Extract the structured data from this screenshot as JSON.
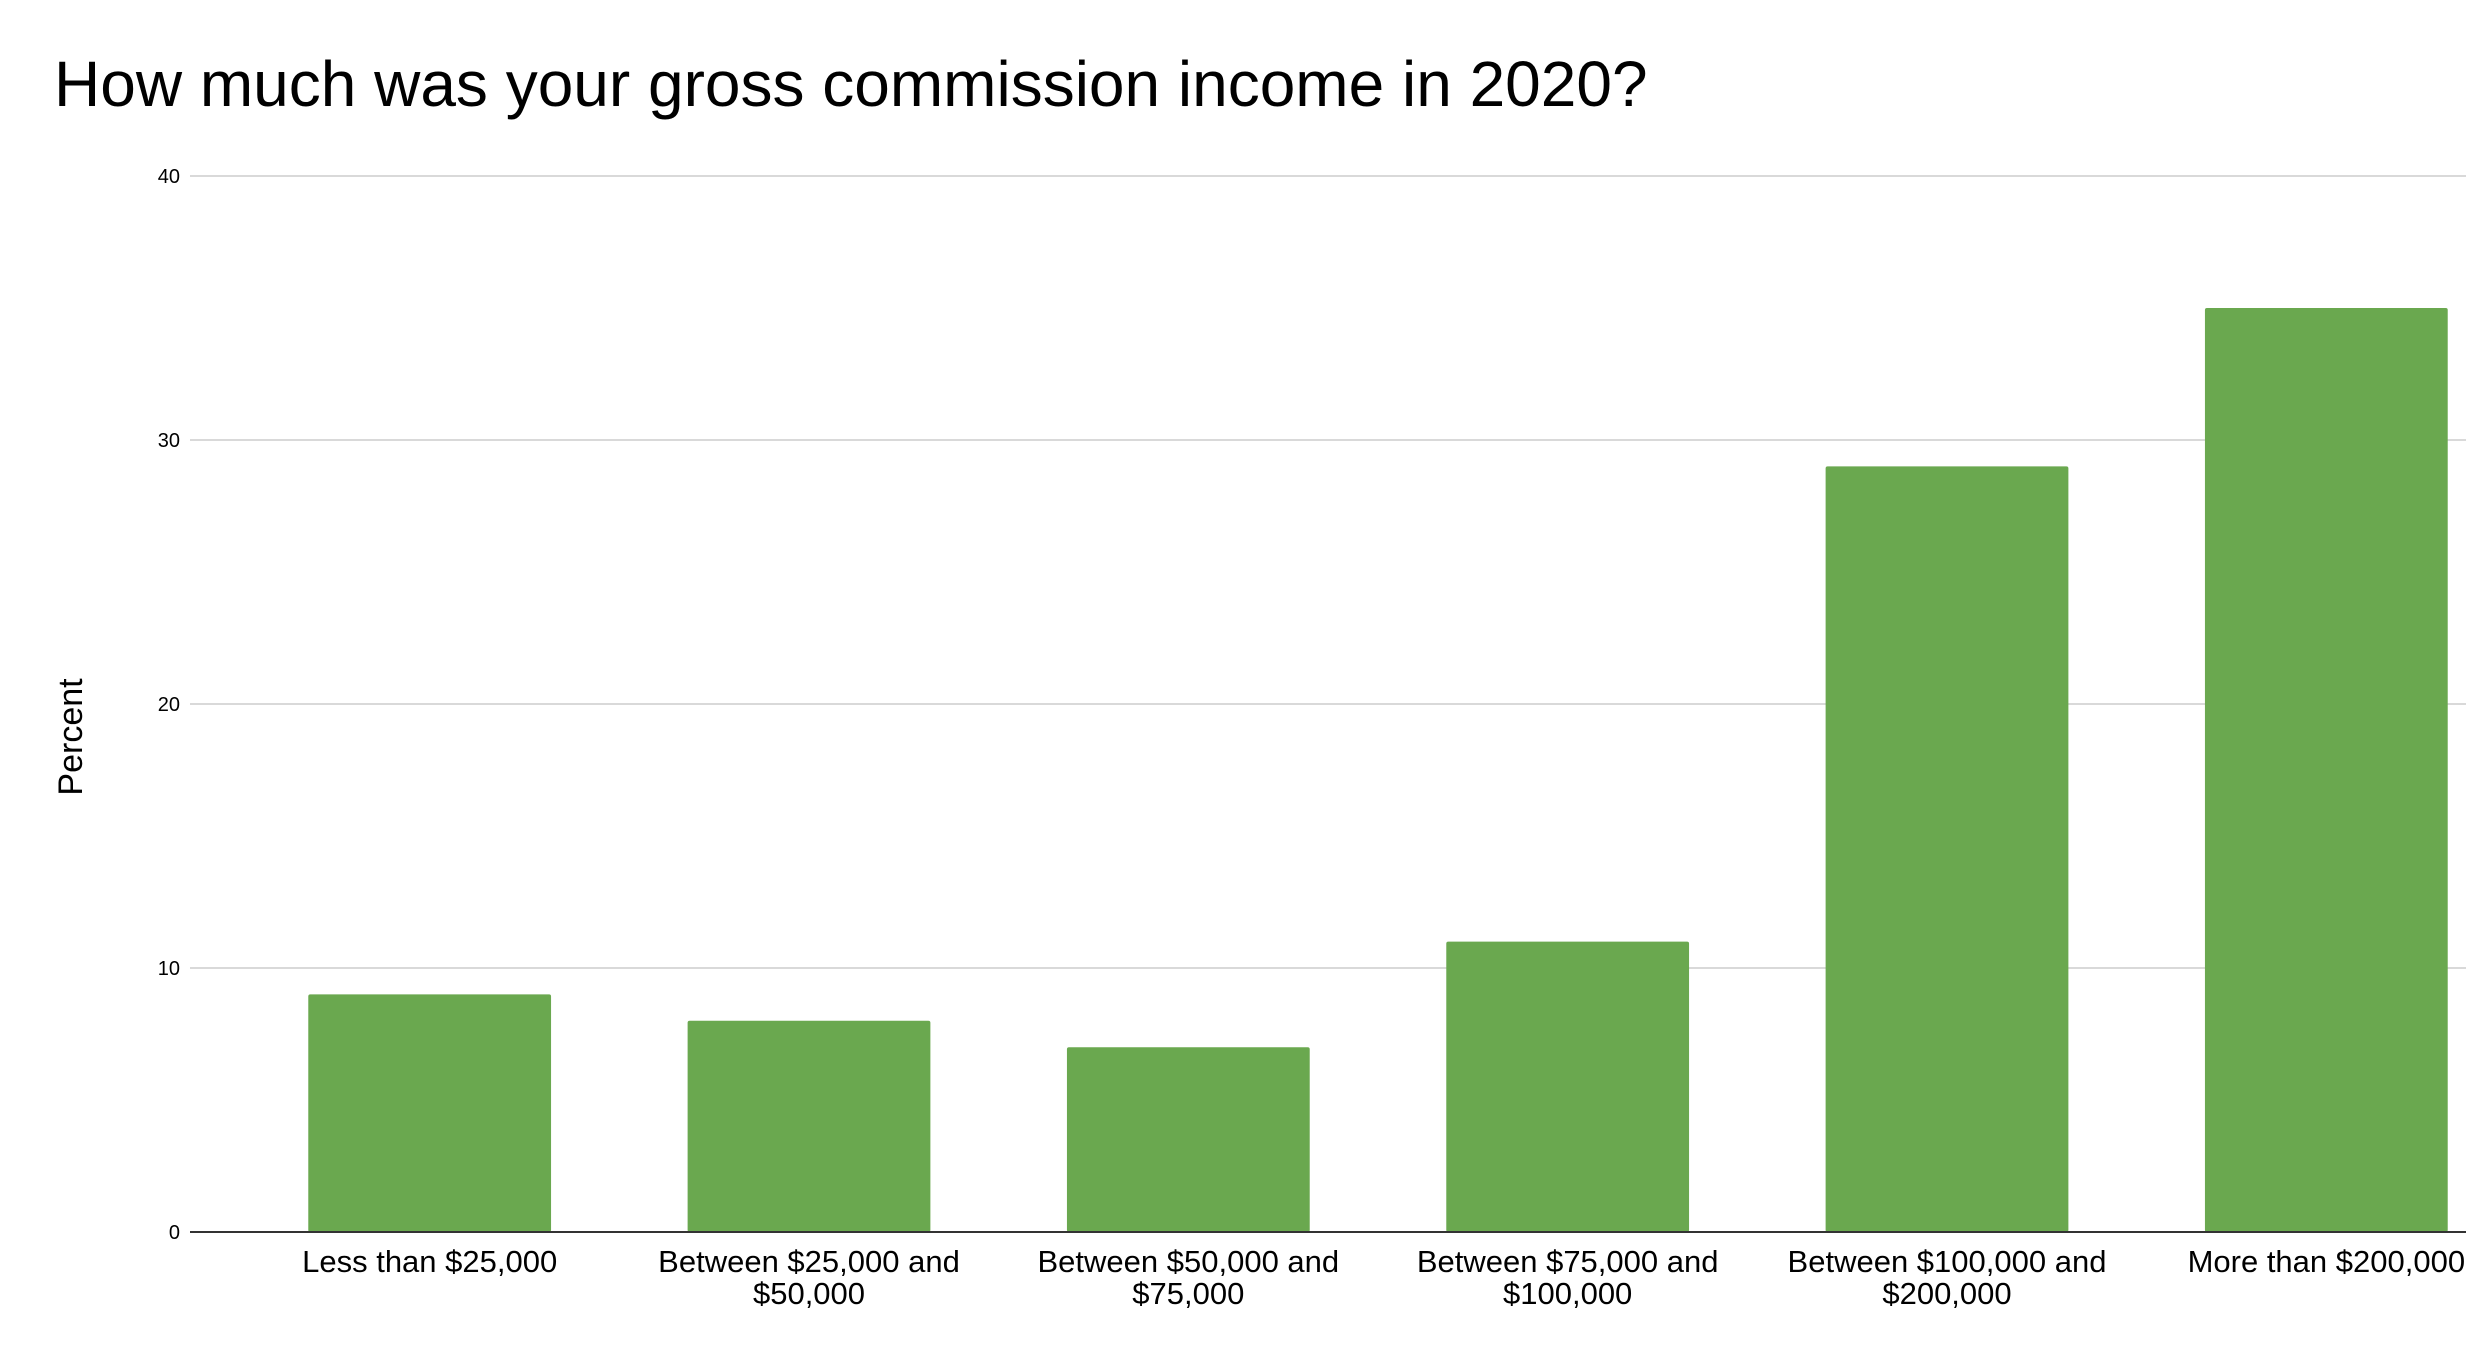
{
  "chart_data": {
    "type": "bar",
    "title": "How much was your gross commission income in 2020?",
    "xlabel": "",
    "ylabel": "Percent",
    "ylim": [
      0,
      40
    ],
    "yticks": [
      0,
      10,
      20,
      30,
      40
    ],
    "grid": true,
    "legend": "none",
    "categories": [
      [
        "Less than $25,000"
      ],
      [
        "Between $25,000 and",
        "$50,000"
      ],
      [
        "Between $50,000 and",
        "$75,000"
      ],
      [
        "Between $75,000 and",
        "$100,000"
      ],
      [
        "Between $100,000 and",
        "$200,000"
      ],
      [
        "More than $200,000"
      ]
    ],
    "values": [
      9,
      8,
      7,
      11,
      29,
      35
    ],
    "colors": {
      "bar": "#6aa84f",
      "grid": "#d9d9d9",
      "axis": "#333333",
      "text": "#000000"
    }
  }
}
